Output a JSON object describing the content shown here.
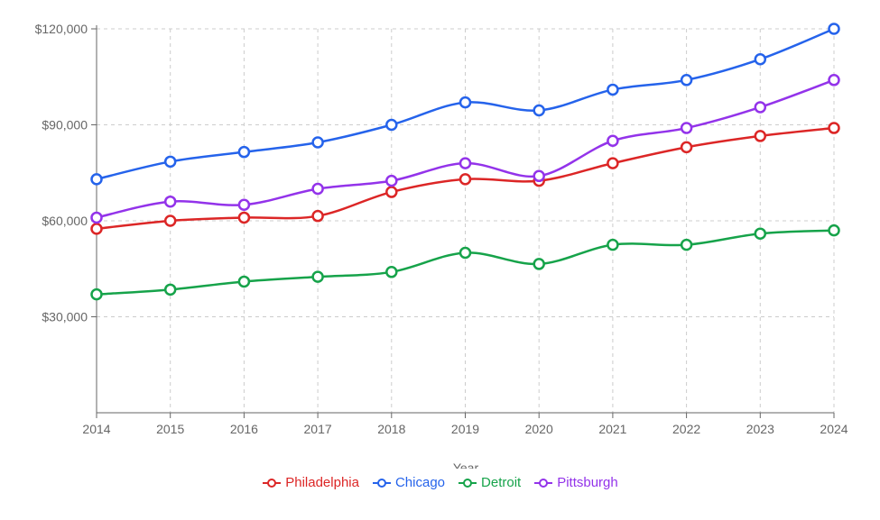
{
  "chart_data": {
    "type": "line",
    "xlabel": "Year",
    "ylabel": "",
    "x": [
      "2014",
      "2015",
      "2016",
      "2017",
      "2018",
      "2019",
      "2020",
      "2021",
      "2022",
      "2023",
      "2024"
    ],
    "ylim": [
      0,
      120000
    ],
    "yticks": [
      {
        "value": 30000,
        "label": "$30,000"
      },
      {
        "value": 60000,
        "label": "$60,000"
      },
      {
        "value": 90000,
        "label": "$90,000"
      },
      {
        "value": 120000,
        "label": "$120,000"
      }
    ],
    "grid": true,
    "legend_position": "bottom",
    "series": [
      {
        "name": "Philadelphia",
        "color": "#dc2626",
        "values": [
          57500,
          60000,
          61000,
          61500,
          69000,
          73000,
          72500,
          78000,
          83000,
          86500,
          89000
        ]
      },
      {
        "name": "Chicago",
        "color": "#2563eb",
        "values": [
          73000,
          78500,
          81500,
          84500,
          90000,
          97000,
          94500,
          101000,
          104000,
          110500,
          120000
        ]
      },
      {
        "name": "Detroit",
        "color": "#16a34a",
        "values": [
          37000,
          38500,
          41000,
          42500,
          44000,
          50000,
          46500,
          52500,
          52500,
          56000,
          57000
        ]
      },
      {
        "name": "Pittsburgh",
        "color": "#9333ea",
        "values": [
          61000,
          66000,
          65000,
          70000,
          72500,
          78000,
          74000,
          85000,
          89000,
          95500,
          104000
        ]
      }
    ]
  }
}
